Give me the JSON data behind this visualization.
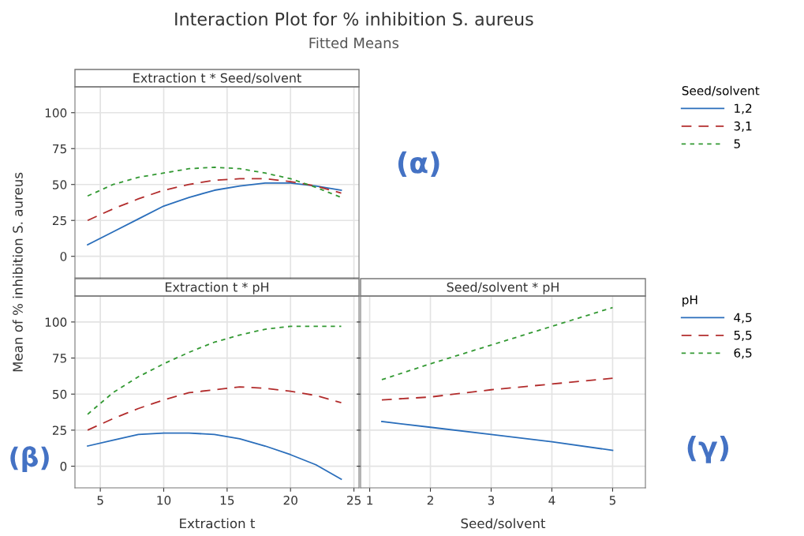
{
  "chart_data": [
    {
      "type": "line",
      "title": "Extraction t * Seed/solvent",
      "ylabel": "Mean of % inhibition S. aureus",
      "legend_title": "Seed/solvent",
      "legend": "right",
      "grid": true,
      "tick_labels": "y",
      "x": [
        4,
        6,
        8,
        10,
        12,
        14,
        16,
        18,
        20,
        22,
        24
      ],
      "xlim": [
        3,
        25.4
      ],
      "xticks": [
        5,
        10,
        15,
        20,
        25
      ],
      "ylim": [
        -15,
        118
      ],
      "yticks": [
        0,
        25,
        50,
        75,
        100
      ],
      "annotations": [
        "Interaction Plot for % inhibition S. aureus",
        "Fitted Means",
        "(α)"
      ],
      "series": [
        {
          "name": "1,2",
          "color": "#2a6ebb",
          "line_style": "solid",
          "values": [
            8,
            17,
            26,
            35,
            41,
            46,
            49,
            51,
            51,
            49,
            46
          ]
        },
        {
          "name": "3,1",
          "color": "#b22c2c",
          "line_style": "dashed",
          "values": [
            25,
            33,
            40,
            46,
            50,
            53,
            54,
            54,
            52,
            49,
            44
          ]
        },
        {
          "name": "5",
          "color": "#339933",
          "line_style": "dotted",
          "values": [
            42,
            50,
            55,
            58,
            61,
            62,
            61,
            58,
            54,
            48,
            41
          ]
        }
      ]
    },
    {
      "type": "line",
      "title": "Extraction t * pH",
      "xlabel": "Extraction t",
      "grid": true,
      "x": [
        4,
        6,
        8,
        10,
        12,
        14,
        16,
        18,
        20,
        22,
        24
      ],
      "xlim": [
        3,
        25.4
      ],
      "xticks": [
        5,
        10,
        15,
        20,
        25
      ],
      "ylim": [
        -15,
        118
      ],
      "yticks": [
        0,
        25,
        50,
        75,
        100
      ],
      "annotations": [
        "(β)"
      ],
      "series": [
        {
          "color": "#2a6ebb",
          "line_style": "solid",
          "values": [
            14,
            18,
            22,
            23,
            23,
            22,
            19,
            14,
            8,
            1,
            -9
          ]
        },
        {
          "color": "#b22c2c",
          "line_style": "dashed",
          "values": [
            25,
            33,
            40,
            46,
            51,
            53,
            55,
            54,
            52,
            49,
            44
          ]
        },
        {
          "color": "#339933",
          "line_style": "dotted",
          "values": [
            36,
            51,
            62,
            71,
            79,
            86,
            91,
            95,
            97,
            97,
            97
          ]
        }
      ]
    },
    {
      "type": "line",
      "title": "Seed/solvent * pH",
      "xlabel": "Seed/solvent",
      "legend_title": "pH",
      "legend": "right",
      "grid": true,
      "tick_labels": "x",
      "x": [
        1.2,
        2,
        3,
        4,
        5
      ],
      "xlim": [
        0.85,
        5.54
      ],
      "xticks": [
        1,
        2,
        3,
        4,
        5
      ],
      "ylim": [
        -15,
        118
      ],
      "yticks": [
        0,
        25,
        50,
        75,
        100
      ],
      "annotations": [
        "(γ)"
      ],
      "series": [
        {
          "name": "4,5",
          "color": "#2a6ebb",
          "line_style": "solid",
          "values": [
            31,
            27,
            22,
            17,
            11
          ]
        },
        {
          "name": "5,5",
          "color": "#b22c2c",
          "line_style": "dashed",
          "values": [
            46,
            48,
            53,
            57,
            61
          ]
        },
        {
          "name": "6,5",
          "color": "#339933",
          "line_style": "dotted",
          "values": [
            60,
            71,
            84,
            97,
            110
          ]
        }
      ]
    }
  ]
}
